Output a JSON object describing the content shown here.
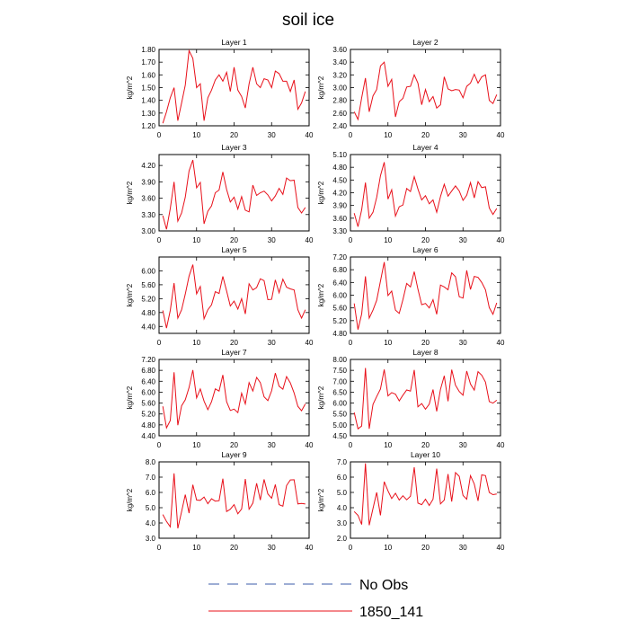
{
  "title": "soil ice",
  "colors": {
    "line": "#e8101a",
    "obs": "#3b5ba8",
    "axis": "#000000"
  },
  "legend": {
    "obs_label": "No Obs",
    "run_label": "1850_141"
  },
  "chart_data": [
    {
      "type": "line",
      "title": "Layer 1",
      "ylabel": "kg/m^2",
      "ylim": [
        1.2,
        1.8
      ],
      "yticks": [
        "1.20",
        "1.30",
        "1.40",
        "1.50",
        "1.60",
        "1.70",
        "1.80"
      ],
      "xlim": [
        0,
        40
      ],
      "xticks": [
        "0",
        "10",
        "20",
        "30",
        "40"
      ],
      "series": [
        {
          "name": "1850_141",
          "x": [
            1,
            2,
            3,
            4,
            5,
            6,
            7,
            8,
            9,
            10,
            11,
            12,
            13,
            14,
            15,
            16,
            17,
            18,
            19,
            20,
            21,
            22,
            23,
            24,
            25,
            26,
            27,
            28,
            29,
            30,
            31,
            32,
            33,
            34,
            35,
            36,
            37,
            38,
            39
          ],
          "values": [
            1.22,
            1.31,
            1.42,
            1.5,
            1.24,
            1.38,
            1.52,
            1.79,
            1.73,
            1.5,
            1.53,
            1.24,
            1.42,
            1.48,
            1.56,
            1.6,
            1.55,
            1.62,
            1.47,
            1.66,
            1.48,
            1.43,
            1.34,
            1.53,
            1.66,
            1.53,
            1.5,
            1.57,
            1.56,
            1.5,
            1.63,
            1.61,
            1.55,
            1.55,
            1.47,
            1.56,
            1.33,
            1.38,
            1.47
          ]
        }
      ]
    },
    {
      "type": "line",
      "title": "Layer 2",
      "ylabel": "kg/m^2",
      "ylim": [
        2.4,
        3.6
      ],
      "yticks": [
        "2.40",
        "2.60",
        "2.80",
        "3.00",
        "3.20",
        "3.40",
        "3.60"
      ],
      "xlim": [
        0,
        40
      ],
      "xticks": [
        "0",
        "10",
        "20",
        "30",
        "40"
      ],
      "series": [
        {
          "name": "1850_141",
          "x": [
            1,
            2,
            3,
            4,
            5,
            6,
            7,
            8,
            9,
            10,
            11,
            12,
            13,
            14,
            15,
            16,
            17,
            18,
            19,
            20,
            21,
            22,
            23,
            24,
            25,
            26,
            27,
            28,
            29,
            30,
            31,
            32,
            33,
            34,
            35,
            36,
            37,
            38,
            39
          ],
          "values": [
            2.62,
            2.5,
            2.84,
            3.15,
            2.62,
            2.87,
            2.97,
            3.34,
            3.4,
            3.02,
            3.13,
            2.54,
            2.78,
            2.83,
            3.01,
            3.02,
            3.2,
            3.07,
            2.73,
            2.97,
            2.78,
            2.86,
            2.68,
            2.73,
            3.17,
            2.98,
            2.95,
            2.97,
            2.96,
            2.84,
            3.02,
            3.07,
            3.21,
            3.07,
            3.17,
            3.2,
            2.8,
            2.75,
            2.89
          ]
        }
      ]
    },
    {
      "type": "line",
      "title": "Layer 3",
      "ylabel": "kg/m^2",
      "ylim": [
        3.0,
        4.4
      ],
      "yticks": [
        "3.00",
        "3.30",
        "3.60",
        "3.90",
        "4.20"
      ],
      "xlim": [
        0,
        40
      ],
      "xticks": [
        "0",
        "10",
        "20",
        "30",
        "40"
      ],
      "series": [
        {
          "name": "1850_141",
          "x": [
            1,
            2,
            3,
            4,
            5,
            6,
            7,
            8,
            9,
            10,
            11,
            12,
            13,
            14,
            15,
            16,
            17,
            18,
            19,
            20,
            21,
            22,
            23,
            24,
            25,
            26,
            27,
            28,
            29,
            30,
            31,
            32,
            33,
            34,
            35,
            36,
            37,
            38,
            39
          ],
          "values": [
            3.28,
            3.03,
            3.41,
            3.9,
            3.18,
            3.33,
            3.62,
            4.1,
            4.3,
            3.79,
            3.89,
            3.13,
            3.36,
            3.46,
            3.7,
            3.75,
            4.08,
            3.76,
            3.53,
            3.62,
            3.4,
            3.63,
            3.38,
            3.35,
            3.84,
            3.65,
            3.7,
            3.73,
            3.66,
            3.55,
            3.64,
            3.78,
            3.67,
            3.97,
            3.92,
            3.93,
            3.43,
            3.33,
            3.43
          ]
        }
      ]
    },
    {
      "type": "line",
      "title": "Layer 4",
      "ylabel": "kg/m^2",
      "ylim": [
        3.3,
        5.1
      ],
      "yticks": [
        "3.30",
        "3.60",
        "3.90",
        "4.20",
        "4.50",
        "4.80",
        "5.10"
      ],
      "xlim": [
        0,
        40
      ],
      "xticks": [
        "0",
        "10",
        "20",
        "30",
        "40"
      ],
      "series": [
        {
          "name": "1850_141",
          "x": [
            1,
            2,
            3,
            4,
            5,
            6,
            7,
            8,
            9,
            10,
            11,
            12,
            13,
            14,
            15,
            16,
            17,
            18,
            19,
            20,
            21,
            22,
            23,
            24,
            25,
            26,
            27,
            28,
            29,
            30,
            31,
            32,
            33,
            34,
            35,
            36,
            37,
            38,
            39
          ],
          "values": [
            3.72,
            3.4,
            3.8,
            4.44,
            3.6,
            3.74,
            4.09,
            4.6,
            4.92,
            4.05,
            4.27,
            3.65,
            3.87,
            3.91,
            4.3,
            4.23,
            4.58,
            4.29,
            4.03,
            4.13,
            3.94,
            4.03,
            3.74,
            4.11,
            4.4,
            4.12,
            4.24,
            4.36,
            4.24,
            4.02,
            4.14,
            4.44,
            4.08,
            4.46,
            4.32,
            4.34,
            3.84,
            3.69,
            3.83
          ]
        }
      ]
    },
    {
      "type": "line",
      "title": "Layer 5",
      "ylabel": "kg/m^2",
      "ylim": [
        4.2,
        6.4
      ],
      "yticks": [
        "4.40",
        "4.80",
        "5.20",
        "5.60",
        "6.00"
      ],
      "xlim": [
        0,
        40
      ],
      "xticks": [
        "0",
        "10",
        "20",
        "30",
        "40"
      ],
      "series": [
        {
          "name": "1850_141",
          "x": [
            1,
            2,
            3,
            4,
            5,
            6,
            7,
            8,
            9,
            10,
            11,
            12,
            13,
            14,
            15,
            16,
            17,
            18,
            19,
            20,
            21,
            22,
            23,
            24,
            25,
            26,
            27,
            28,
            29,
            30,
            31,
            32,
            33,
            34,
            35,
            36,
            37,
            38,
            39
          ],
          "values": [
            4.86,
            4.35,
            4.86,
            5.65,
            4.64,
            4.88,
            5.33,
            5.85,
            6.18,
            5.34,
            5.55,
            4.62,
            4.88,
            5.02,
            5.4,
            5.35,
            5.84,
            5.42,
            4.99,
            5.13,
            4.9,
            5.2,
            4.76,
            5.63,
            5.45,
            5.52,
            5.77,
            5.72,
            5.17,
            5.18,
            5.74,
            5.37,
            5.76,
            5.53,
            5.48,
            5.45,
            4.88,
            4.64,
            4.88
          ]
        }
      ]
    },
    {
      "type": "line",
      "title": "Layer 6",
      "ylabel": "kg/m^2",
      "ylim": [
        4.8,
        7.2
      ],
      "yticks": [
        "4.80",
        "5.20",
        "5.60",
        "6.00",
        "6.40",
        "6.80",
        "7.20"
      ],
      "xlim": [
        0,
        40
      ],
      "xticks": [
        "0",
        "10",
        "20",
        "30",
        "40"
      ],
      "series": [
        {
          "name": "1850_141",
          "x": [
            1,
            2,
            3,
            4,
            5,
            6,
            7,
            8,
            9,
            10,
            11,
            12,
            13,
            14,
            15,
            16,
            17,
            18,
            19,
            20,
            21,
            22,
            23,
            24,
            25,
            26,
            27,
            28,
            29,
            30,
            31,
            32,
            33,
            34,
            35,
            36,
            37,
            38,
            39
          ],
          "values": [
            5.74,
            4.92,
            5.41,
            6.59,
            5.28,
            5.53,
            5.84,
            6.44,
            7.04,
            5.99,
            6.13,
            5.53,
            5.43,
            5.86,
            6.37,
            6.26,
            6.74,
            6.19,
            5.7,
            5.74,
            5.6,
            5.86,
            5.4,
            6.32,
            6.26,
            6.17,
            6.7,
            6.58,
            5.95,
            5.91,
            6.78,
            6.18,
            6.59,
            6.56,
            6.4,
            6.17,
            5.61,
            5.4,
            5.76
          ]
        }
      ]
    },
    {
      "type": "line",
      "title": "Layer 7",
      "ylabel": "kg/m^2",
      "ylim": [
        4.4,
        7.2
      ],
      "yticks": [
        "4.40",
        "4.80",
        "5.20",
        "5.60",
        "6.00",
        "6.40",
        "6.80",
        "7.20"
      ],
      "xlim": [
        0,
        40
      ],
      "xticks": [
        "0",
        "10",
        "20",
        "30",
        "40"
      ],
      "series": [
        {
          "name": "1850_141",
          "x": [
            1,
            2,
            3,
            4,
            5,
            6,
            7,
            8,
            9,
            10,
            11,
            12,
            13,
            14,
            15,
            16,
            17,
            18,
            19,
            20,
            21,
            22,
            23,
            24,
            25,
            26,
            27,
            28,
            29,
            30,
            31,
            32,
            33,
            34,
            35,
            36,
            37,
            38,
            39
          ],
          "values": [
            5.48,
            4.69,
            4.96,
            6.73,
            4.79,
            5.5,
            5.72,
            6.17,
            6.81,
            5.79,
            6.12,
            5.67,
            5.36,
            5.65,
            6.12,
            6.04,
            6.63,
            5.65,
            5.33,
            5.38,
            5.25,
            5.96,
            5.57,
            6.35,
            6.04,
            6.54,
            6.35,
            5.83,
            5.69,
            6.05,
            6.7,
            6.22,
            6.11,
            6.57,
            6.34,
            5.97,
            5.48,
            5.32,
            5.57
          ]
        }
      ]
    },
    {
      "type": "line",
      "title": "Layer 8",
      "ylabel": "kg/m^2",
      "ylim": [
        4.5,
        8.0
      ],
      "yticks": [
        "4.50",
        "5.00",
        "5.50",
        "6.00",
        "6.50",
        "7.00",
        "7.50",
        "8.00"
      ],
      "xlim": [
        0,
        40
      ],
      "xticks": [
        "0",
        "10",
        "20",
        "30",
        "40"
      ],
      "series": [
        {
          "name": "1850_141",
          "x": [
            1,
            2,
            3,
            4,
            5,
            6,
            7,
            8,
            9,
            10,
            11,
            12,
            13,
            14,
            15,
            16,
            17,
            18,
            19,
            20,
            21,
            22,
            23,
            24,
            25,
            26,
            27,
            28,
            29,
            30,
            31,
            32,
            33,
            34,
            35,
            36,
            37,
            38,
            39
          ],
          "values": [
            5.57,
            4.82,
            4.95,
            7.61,
            4.82,
            5.94,
            6.3,
            6.64,
            7.54,
            6.33,
            6.48,
            6.41,
            6.1,
            6.36,
            6.6,
            6.55,
            7.52,
            5.83,
            5.98,
            5.72,
            5.95,
            6.62,
            5.62,
            6.63,
            7.25,
            6.08,
            7.53,
            6.82,
            6.53,
            6.36,
            7.47,
            6.87,
            6.59,
            7.44,
            7.28,
            6.96,
            6.07,
            6.0,
            6.13
          ]
        }
      ]
    },
    {
      "type": "line",
      "title": "Layer 9",
      "ylabel": "kg/m^2",
      "ylim": [
        3.0,
        8.0
      ],
      "yticks": [
        "3.0",
        "4.0",
        "5.0",
        "6.0",
        "7.0",
        "8.0"
      ],
      "xlim": [
        0,
        40
      ],
      "xticks": [
        "0",
        "10",
        "20",
        "30",
        "40"
      ],
      "series": [
        {
          "name": "1850_141",
          "x": [
            1,
            2,
            3,
            4,
            5,
            6,
            7,
            8,
            9,
            10,
            11,
            12,
            13,
            14,
            15,
            16,
            17,
            18,
            19,
            20,
            21,
            22,
            23,
            24,
            25,
            26,
            27,
            28,
            29,
            30,
            31,
            32,
            33,
            34,
            35,
            36,
            37,
            38,
            39
          ],
          "values": [
            4.55,
            4.1,
            3.75,
            7.25,
            3.65,
            4.75,
            5.85,
            4.65,
            6.5,
            5.5,
            5.48,
            5.7,
            5.26,
            5.58,
            5.43,
            5.46,
            6.9,
            4.75,
            4.9,
            5.2,
            4.6,
            4.92,
            6.88,
            4.9,
            5.3,
            6.6,
            5.5,
            6.85,
            5.9,
            5.62,
            6.52,
            5.2,
            5.1,
            6.45,
            6.82,
            6.83,
            5.25,
            5.28,
            5.24
          ]
        }
      ]
    },
    {
      "type": "line",
      "title": "Layer 10",
      "ylabel": "kg/m^2",
      "ylim": [
        2.0,
        7.0
      ],
      "yticks": [
        "2.0",
        "3.0",
        "4.0",
        "5.0",
        "6.0",
        "7.0"
      ],
      "xlim": [
        0,
        40
      ],
      "xticks": [
        "0",
        "10",
        "20",
        "30",
        "40"
      ],
      "series": [
        {
          "name": "1850_141",
          "x": [
            1,
            2,
            3,
            4,
            5,
            6,
            7,
            8,
            9,
            10,
            11,
            12,
            13,
            14,
            15,
            16,
            17,
            18,
            19,
            20,
            21,
            22,
            23,
            24,
            25,
            26,
            27,
            28,
            29,
            30,
            31,
            32,
            33,
            34,
            35,
            36,
            37,
            38,
            39
          ],
          "values": [
            3.75,
            3.5,
            2.9,
            6.9,
            2.85,
            3.95,
            5.0,
            3.5,
            5.7,
            5.1,
            4.6,
            4.95,
            4.5,
            4.78,
            4.52,
            4.75,
            6.65,
            4.3,
            4.2,
            4.55,
            4.15,
            4.55,
            6.55,
            4.25,
            4.5,
            6.2,
            4.4,
            6.3,
            6.05,
            4.8,
            4.55,
            6.1,
            5.55,
            4.45,
            6.15,
            6.1,
            5.0,
            4.85,
            4.9
          ]
        }
      ]
    }
  ]
}
